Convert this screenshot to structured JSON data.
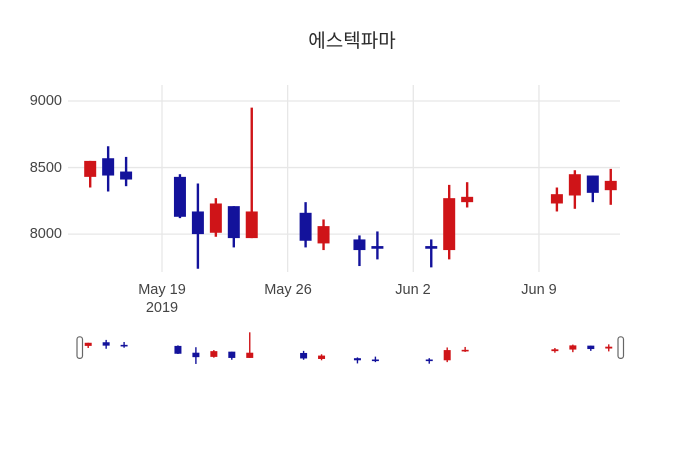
{
  "chart": {
    "title": "에스텍파마",
    "y_axis": {
      "tick_labels": [
        "9000",
        "8500",
        "8000"
      ]
    },
    "x_axis": {
      "ticks": [
        {
          "label": "May 19",
          "sub": "2019",
          "date": "2019-05-19"
        },
        {
          "label": "May 26",
          "sub": "",
          "date": "2019-05-26"
        },
        {
          "label": "Jun 2",
          "sub": "",
          "date": "2019-06-02"
        },
        {
          "label": "Jun 9",
          "sub": "",
          "date": "2019-06-09"
        }
      ]
    }
  },
  "chart_data": {
    "type": "candlestick",
    "title": "에스텍파마",
    "xlabel": "",
    "ylabel": "",
    "ylim": [
      7715,
      9120
    ],
    "yticks": [
      8000,
      8500,
      9000
    ],
    "xtick_dates": [
      "2019-05-19",
      "2019-05-26",
      "2019-06-02",
      "2019-06-09"
    ],
    "grid": true,
    "legend": "none",
    "rangeslider_visible": true,
    "increasing_color": "#cf1418",
    "decreasing_color": "#13129b",
    "gridline_color": "#e7e7e7",
    "candles": [
      {
        "date": "2019-05-15",
        "open": 8430,
        "high": 8550,
        "low": 8350,
        "close": 8550,
        "direction": "up"
      },
      {
        "date": "2019-05-16",
        "open": 8570,
        "high": 8660,
        "low": 8320,
        "close": 8440,
        "direction": "down"
      },
      {
        "date": "2019-05-17",
        "open": 8470,
        "high": 8580,
        "low": 8360,
        "close": 8410,
        "direction": "down"
      },
      {
        "date": "2019-05-20",
        "open": 8430,
        "high": 8450,
        "low": 8120,
        "close": 8130,
        "direction": "down"
      },
      {
        "date": "2019-05-21",
        "open": 8170,
        "high": 8380,
        "low": 7740,
        "close": 8000,
        "direction": "down"
      },
      {
        "date": "2019-05-22",
        "open": 8010,
        "high": 8270,
        "low": 7980,
        "close": 8230,
        "direction": "up"
      },
      {
        "date": "2019-05-23",
        "open": 8210,
        "high": 8210,
        "low": 7900,
        "close": 7970,
        "direction": "down"
      },
      {
        "date": "2019-05-24",
        "open": 7970,
        "high": 8950,
        "low": 7970,
        "close": 8170,
        "direction": "up"
      },
      {
        "date": "2019-05-27",
        "open": 8160,
        "high": 8240,
        "low": 7900,
        "close": 7950,
        "direction": "down"
      },
      {
        "date": "2019-05-28",
        "open": 7930,
        "high": 8110,
        "low": 7880,
        "close": 8060,
        "direction": "up"
      },
      {
        "date": "2019-05-30",
        "open": 7960,
        "high": 7990,
        "low": 7760,
        "close": 7880,
        "direction": "down"
      },
      {
        "date": "2019-05-31",
        "open": 7910,
        "high": 8020,
        "low": 7810,
        "close": 7890,
        "direction": "down"
      },
      {
        "date": "2019-06-03",
        "open": 7910,
        "high": 7960,
        "low": 7750,
        "close": 7890,
        "direction": "down"
      },
      {
        "date": "2019-06-04",
        "open": 7880,
        "high": 8370,
        "low": 7810,
        "close": 8270,
        "direction": "up"
      },
      {
        "date": "2019-06-05",
        "open": 8240,
        "high": 8390,
        "low": 8200,
        "close": 8280,
        "direction": "up"
      },
      {
        "date": "2019-06-10",
        "open": 8230,
        "high": 8350,
        "low": 8170,
        "close": 8300,
        "direction": "up"
      },
      {
        "date": "2019-06-11",
        "open": 8290,
        "high": 8480,
        "low": 8190,
        "close": 8450,
        "direction": "up"
      },
      {
        "date": "2019-06-12",
        "open": 8440,
        "high": 8440,
        "low": 8240,
        "close": 8310,
        "direction": "down"
      },
      {
        "date": "2019-06-13",
        "open": 8330,
        "high": 8490,
        "low": 8220,
        "close": 8400,
        "direction": "up"
      }
    ]
  }
}
